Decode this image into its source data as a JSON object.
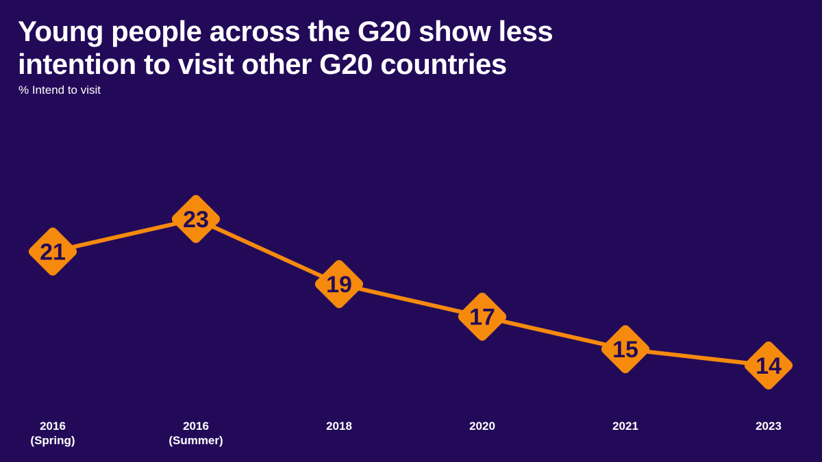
{
  "header": {
    "title_line1": "Young people across the G20 show less",
    "title_line2": "intention to visit other G20 countries",
    "subtitle": "% Intend to visit"
  },
  "colors": {
    "background": "#230a59",
    "accent": "#f68a0d",
    "text": "#ffffff"
  },
  "chart_data": {
    "type": "line",
    "title": "Young people across the G20 show less intention to visit other G20 countries",
    "subtitle": "% Intend to visit",
    "ylabel": "% Intend to visit",
    "xlabel": "",
    "categories": [
      [
        "2016",
        "(Spring)"
      ],
      [
        "2016",
        "(Summer)"
      ],
      [
        "2018"
      ],
      [
        "2020"
      ],
      [
        "2021"
      ],
      [
        "2023"
      ]
    ],
    "series": [
      {
        "values": [
          21,
          23,
          19,
          17,
          15,
          14
        ]
      }
    ],
    "marker": "diamond",
    "data_labels": true,
    "grid": false,
    "legend": "none"
  }
}
